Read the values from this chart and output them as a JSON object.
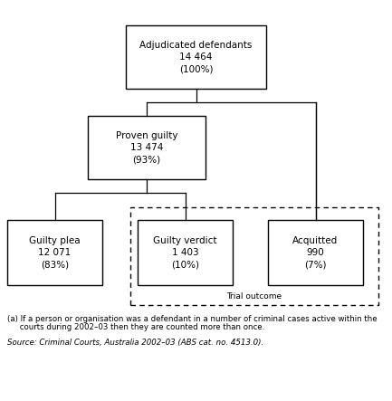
{
  "title": "Adjudicated defendants\n14 464\n(100%)",
  "node_proven": "Proven guilty\n13 474\n(93%)",
  "node_guilty_plea": "Guilty plea\n12 071\n(83%)",
  "node_guilty_verdict": "Guilty verdict\n1 403\n(10%)",
  "node_acquitted": "Acquitted\n990\n(7%)",
  "trial_outcome_label": "Trial outcome",
  "footnote_line1": "(a) If a person or organisation was a defendant in a number of criminal cases active within the",
  "footnote_line2": "     courts during 2002–03 then they are counted more than once.",
  "source": "Source: Criminal Courts, Australia 2002–03 (ABS cat. no. 4513.0).",
  "bg_color": "#ffffff",
  "box_color": "#000000",
  "text_color": "#000000",
  "font_size": 7.5,
  "footnote_font_size": 6.2,
  "source_font_size": 6.2
}
